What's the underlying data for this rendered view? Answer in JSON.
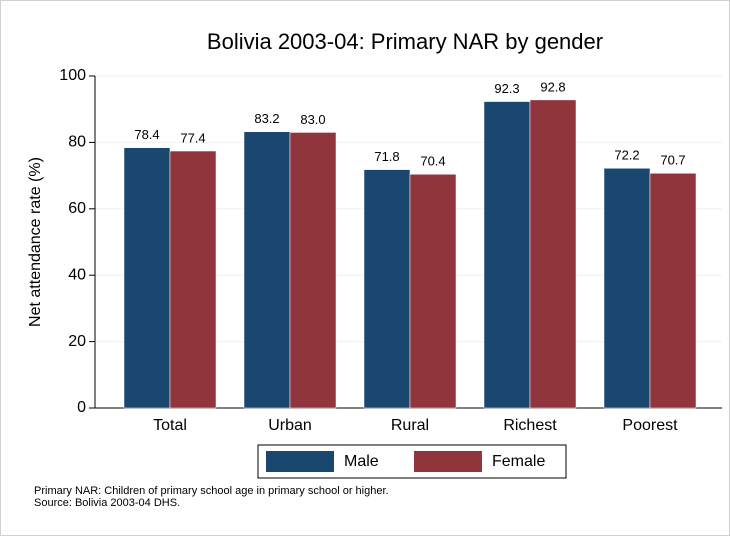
{
  "chart_data": {
    "type": "bar",
    "title": "Bolivia 2003-04: Primary NAR by gender",
    "ylabel": "Net attendance rate (%)",
    "categories": [
      "Total",
      "Urban",
      "Rural",
      "Richest",
      "Poorest"
    ],
    "series": [
      {
        "name": "Male",
        "color": "#1a476f",
        "values": [
          78.4,
          83.2,
          71.8,
          92.3,
          72.2
        ],
        "value_labels": [
          "78.4",
          "83.2",
          "71.8",
          "92.3",
          "72.2"
        ]
      },
      {
        "name": "Female",
        "color": "#90353b",
        "values": [
          77.4,
          83.0,
          70.4,
          92.8,
          70.7
        ],
        "value_labels": [
          "77.4",
          "83.0",
          "70.4",
          "92.8",
          "70.7"
        ]
      }
    ],
    "ylim": [
      0,
      100
    ],
    "yticks": [
      0,
      20,
      40,
      60,
      80,
      100
    ],
    "grid": true,
    "legend": "bottom",
    "notes": [
      "Primary NAR: Children of primary school age in primary school or higher.",
      "Source: Bolivia 2003-04 DHS."
    ]
  }
}
